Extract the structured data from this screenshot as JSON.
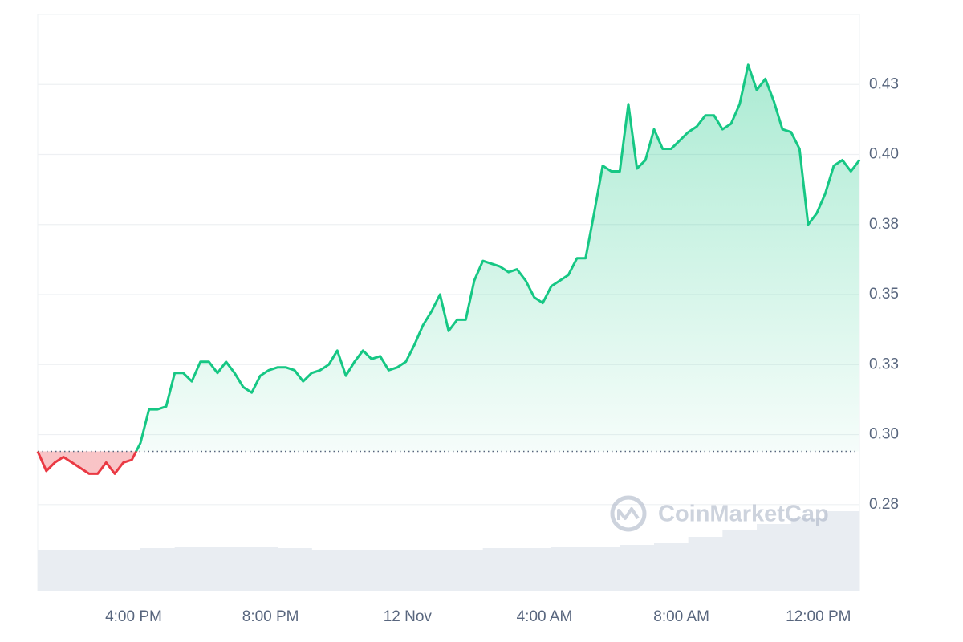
{
  "chart_data": {
    "type": "line",
    "x": [
      13.2,
      13.45,
      13.7,
      13.95,
      14.2,
      14.45,
      14.7,
      14.95,
      15.2,
      15.45,
      15.7,
      15.95,
      16.2,
      16.45,
      16.7,
      16.95,
      17.2,
      17.45,
      17.7,
      17.95,
      18.2,
      18.45,
      18.7,
      18.95,
      19.2,
      19.45,
      19.7,
      19.95,
      20.2,
      20.45,
      20.7,
      20.95,
      21.2,
      21.45,
      21.7,
      21.95,
      22.2,
      22.45,
      22.7,
      22.95,
      23.2,
      23.45,
      23.7,
      23.95,
      24.2,
      24.45,
      24.7,
      24.95,
      25.2,
      25.45,
      25.7,
      25.95,
      26.2,
      26.45,
      26.7,
      26.95,
      27.2,
      27.45,
      27.7,
      27.95,
      28.2,
      28.45,
      28.7,
      28.95,
      29.2,
      29.45,
      29.7,
      29.95,
      30.2,
      30.45,
      30.7,
      30.95,
      31.2,
      31.45,
      31.7,
      31.95,
      32.2,
      32.45,
      32.7,
      32.95,
      33.2,
      33.45,
      33.7,
      33.95,
      34.2,
      34.45,
      34.7,
      34.95,
      35.2,
      35.45,
      35.7,
      35.95,
      36.2,
      36.45,
      36.7,
      36.95,
      37.2
    ],
    "series": [
      {
        "color": "#16c784",
        "down_color": "#ea3943",
        "values": [
          0.294,
          0.287,
          0.29,
          0.292,
          0.29,
          0.288,
          0.286,
          0.286,
          0.29,
          0.286,
          0.29,
          0.291,
          0.297,
          0.309,
          0.309,
          0.31,
          0.322,
          0.322,
          0.319,
          0.326,
          0.326,
          0.322,
          0.326,
          0.322,
          0.317,
          0.315,
          0.321,
          0.323,
          0.324,
          0.324,
          0.323,
          0.319,
          0.322,
          0.323,
          0.325,
          0.33,
          0.321,
          0.326,
          0.33,
          0.327,
          0.328,
          0.323,
          0.324,
          0.326,
          0.332,
          0.339,
          0.344,
          0.35,
          0.337,
          0.341,
          0.341,
          0.355,
          0.362,
          0.361,
          0.36,
          0.358,
          0.359,
          0.355,
          0.349,
          0.347,
          0.353,
          0.355,
          0.357,
          0.363,
          0.363,
          0.379,
          0.396,
          0.394,
          0.394,
          0.418,
          0.395,
          0.398,
          0.409,
          0.402,
          0.402,
          0.405,
          0.408,
          0.41,
          0.414,
          0.414,
          0.409,
          0.411,
          0.418,
          0.432,
          0.423,
          0.427,
          0.419,
          0.409,
          0.408,
          0.402,
          0.375,
          0.379,
          0.386,
          0.396,
          0.398,
          0.394,
          0.398
        ]
      }
    ],
    "baseline": 0.294,
    "xlim": [
      13.2,
      37.2
    ],
    "xticks": [
      {
        "value": 16,
        "label": "4:00 PM"
      },
      {
        "value": 20,
        "label": "8:00 PM"
      },
      {
        "value": 24,
        "label": "12 Nov"
      },
      {
        "value": 28,
        "label": "4:00 AM"
      },
      {
        "value": 32,
        "label": "8:00 AM"
      },
      {
        "value": 36,
        "label": "12:00 PM"
      }
    ],
    "ylim": [
      0.244,
      0.45
    ],
    "yticks": [
      {
        "value": 0.275,
        "label": "0.28"
      },
      {
        "value": 0.3,
        "label": "0.30"
      },
      {
        "value": 0.325,
        "label": "0.33"
      },
      {
        "value": 0.35,
        "label": "0.35"
      },
      {
        "value": 0.375,
        "label": "0.38"
      },
      {
        "value": 0.4,
        "label": "0.40"
      },
      {
        "value": 0.425,
        "label": "0.43"
      }
    ],
    "grid": true,
    "volume": {
      "color": "#e9edf2",
      "ylim": [
        0,
        100
      ],
      "values": [
        26,
        26,
        26,
        27,
        28,
        28,
        28,
        27,
        26,
        26,
        26,
        26,
        26,
        27,
        27,
        28,
        28,
        29,
        30,
        34,
        38,
        42,
        46,
        50
      ]
    },
    "watermark": "CoinMarketCap"
  }
}
